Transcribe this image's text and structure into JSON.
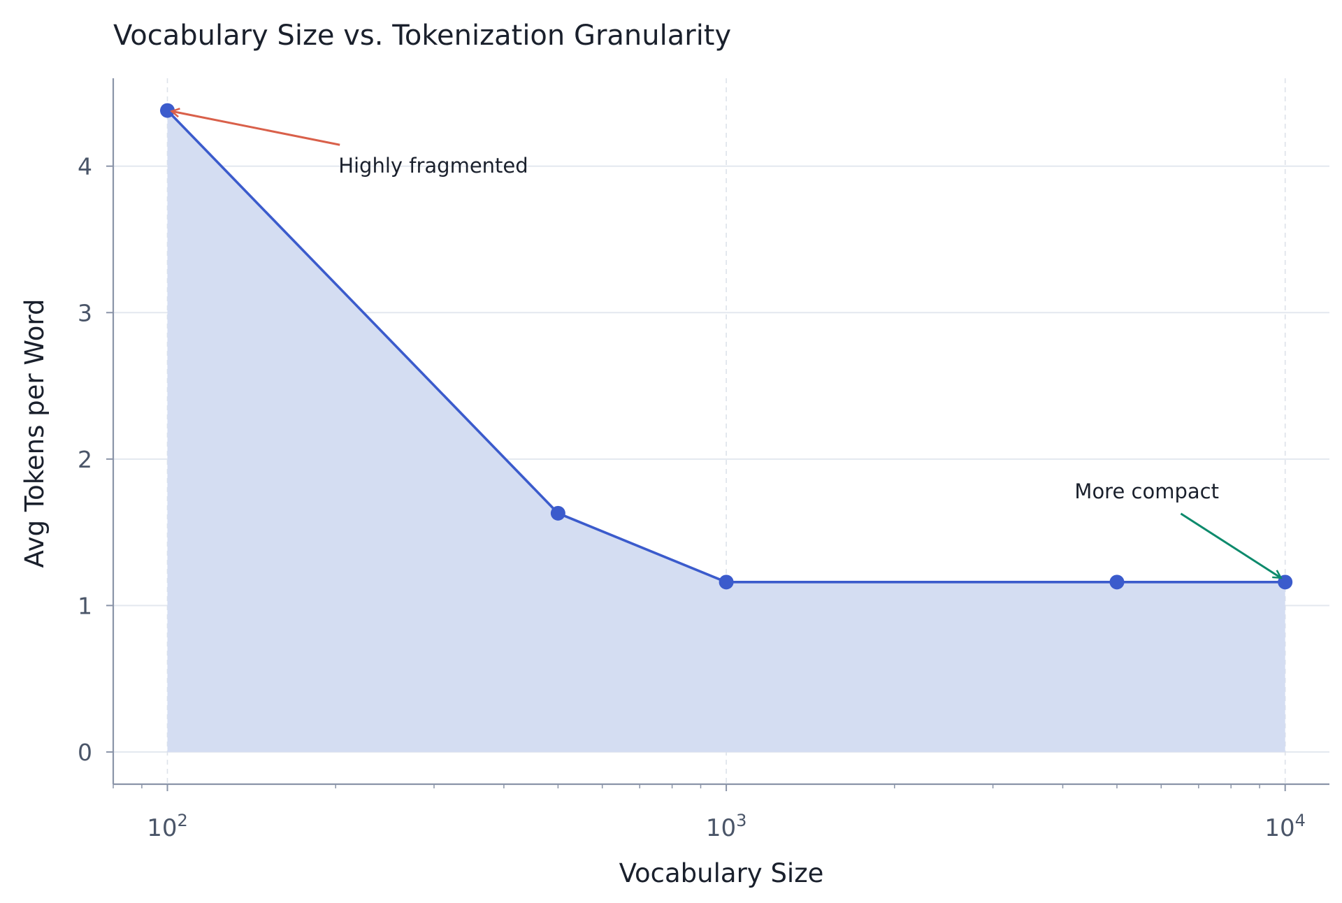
{
  "chart_data": {
    "type": "area",
    "title": "Vocabulary Size vs. Tokenization Granularity",
    "xlabel": "Vocabulary Size",
    "ylabel": "Avg Tokens per Word",
    "x_scale": "log",
    "xlim": [
      80,
      12000
    ],
    "ylim": [
      -0.22,
      4.6
    ],
    "x_ticks": [
      {
        "value": 100,
        "base": "10",
        "exp": "2"
      },
      {
        "value": 1000,
        "base": "10",
        "exp": "3"
      },
      {
        "value": 10000,
        "base": "10",
        "exp": "4"
      }
    ],
    "y_ticks": [
      {
        "value": 0,
        "label": "0"
      },
      {
        "value": 1,
        "label": "1"
      },
      {
        "value": 2,
        "label": "2"
      },
      {
        "value": 3,
        "label": "3"
      },
      {
        "value": 4,
        "label": "4"
      }
    ],
    "grid": true,
    "series": [
      {
        "x": [
          100,
          500,
          1000,
          5000,
          10000
        ],
        "y": [
          4.38,
          1.63,
          1.16,
          1.16,
          1.16
        ],
        "color": "#3b5bcc",
        "fill_color": "#d4ddf2"
      }
    ],
    "annotations": [
      {
        "text": "Highly fragmented",
        "target_x": 100,
        "target_y": 4.38,
        "text_x": 200,
        "text_y": 4.05,
        "color": "#d9604a"
      },
      {
        "text": "More compact",
        "text_x": 4200,
        "text_y": 1.78,
        "target_x": 10000,
        "target_y": 1.16,
        "color": "#0d8a6c"
      }
    ]
  }
}
